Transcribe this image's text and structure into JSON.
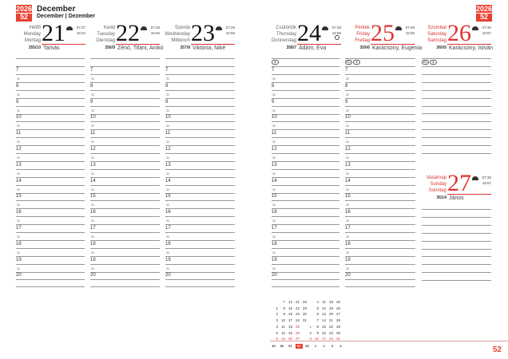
{
  "header": {
    "year": "2026",
    "week": "52",
    "month": "December",
    "month_sub": "December | Dezember"
  },
  "days": [
    {
      "names": [
        "Hétfő",
        "Monday",
        "Montag"
      ],
      "num": "21",
      "sunrise": "07:27",
      "sunset": "15:54",
      "daycount": "355/10",
      "namedays": "Tamás",
      "red": false,
      "moon_icons": []
    },
    {
      "names": [
        "Kedd",
        "Tuesday",
        "Dienstag"
      ],
      "num": "22",
      "sunrise": "07:28",
      "sunset": "15:55",
      "daycount": "356/9",
      "namedays": "Zénó, Tifani, Anikó",
      "red": false,
      "moon_icons": []
    },
    {
      "names": [
        "Szerda",
        "Wednesday",
        "Mittwoch"
      ],
      "num": "23",
      "sunrise": "07:29",
      "sunset": "15:55",
      "daycount": "357/8",
      "namedays": "Viktória, Niké",
      "red": false,
      "moon_icons": []
    },
    {
      "names": [
        "Csütörtök",
        "Thursday",
        "Donnerstag"
      ],
      "num": "24",
      "sunrise": "07:29",
      "sunset": "15:56",
      "daycount": "358/7",
      "namedays": "Ádám, Éva",
      "red": false,
      "moon_icons": [
        "●"
      ],
      "full_moon": true
    },
    {
      "names": [
        "Péntek",
        "Friday",
        "Freitag"
      ],
      "num": "25",
      "sunrise": "07:29",
      "sunset": "15:56",
      "daycount": "359/6",
      "namedays": "Karácsony, Eugénia",
      "red": true,
      "moon_icons": [
        "EU",
        "●"
      ]
    },
    {
      "names": [
        "Szombat",
        "Saturday",
        "Samstag"
      ],
      "num": "26",
      "sunrise": "07:30",
      "sunset": "15:57",
      "daycount": "360/5",
      "namedays": "Karácsony, István",
      "red": true,
      "moon_icons": [
        "EU",
        "●"
      ]
    },
    {
      "names": [
        "Vasárnap",
        "Sunday",
        "Sonntag"
      ],
      "num": "27",
      "sunrise": "07:30",
      "sunset": "15:57",
      "daycount": "361/4",
      "namedays": "János",
      "red": true,
      "moon_icons": []
    }
  ],
  "hours": [
    "7",
    "8",
    "9",
    "10",
    "11",
    "12",
    "13",
    "14",
    "15",
    "16",
    "17",
    "18",
    "19",
    "20"
  ],
  "half_label": "30",
  "mini_calendars": [
    {
      "rows": [
        [
          "",
          "7",
          "14",
          "21",
          "28"
        ],
        [
          "1",
          "8",
          "15",
          "22",
          "29"
        ],
        [
          "2",
          "9",
          "16",
          "23",
          "30"
        ],
        [
          "3",
          "10",
          "17",
          "24",
          "31"
        ],
        [
          "4",
          "11",
          "18",
          "25",
          ""
        ],
        [
          "5",
          "12",
          "19",
          "26",
          ""
        ],
        [
          "6",
          "13",
          "20",
          "27",
          ""
        ]
      ],
      "red": [
        "25",
        "26",
        "6",
        "13",
        "20",
        "27"
      ]
    },
    {
      "rows": [
        [
          "",
          "4",
          "11",
          "18",
          "25"
        ],
        [
          "",
          "5",
          "12",
          "19",
          "26"
        ],
        [
          "",
          "6",
          "13",
          "20",
          "27"
        ],
        [
          "",
          "7",
          "14",
          "21",
          "28"
        ],
        [
          "1",
          "8",
          "15",
          "22",
          "29"
        ],
        [
          "2",
          "9",
          "16",
          "23",
          "30"
        ],
        [
          "3",
          "10",
          "17",
          "24",
          "31"
        ]
      ],
      "red": [
        "1",
        "3",
        "10",
        "17",
        "24",
        "31"
      ]
    }
  ],
  "week_strip": [
    "49",
    "50",
    "51",
    "52",
    "53",
    "1",
    "2",
    "3",
    "4"
  ],
  "current_week": "52",
  "page_number": "52",
  "colors": {
    "accent": "#e8402f"
  }
}
